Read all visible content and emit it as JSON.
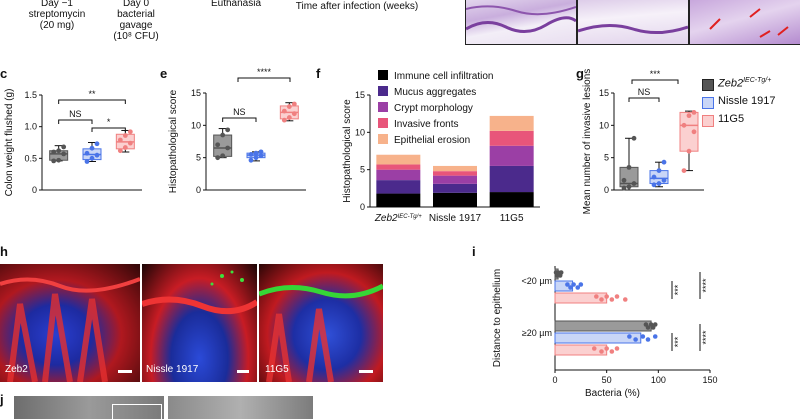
{
  "timeline": {
    "day_minus1": "Day −1",
    "strep": "streptomycin",
    "strep_dose": "(20 mg)",
    "day0": "Day 0",
    "bacterial": "bacterial",
    "gavage": "gavage",
    "cfu": "(10⁸ CFU)",
    "euthanasia": "Euthanasia",
    "time_after": "Time after infection (weeks)"
  },
  "panel_labels": {
    "c": "c",
    "e": "e",
    "f": "f",
    "g": "g",
    "h": "h",
    "i": "i",
    "j": "j"
  },
  "legend": {
    "items": [
      {
        "label": "Zeb2",
        "sup": "IEC-Tg/+",
        "color": "#555555"
      },
      {
        "label": "Nissle 1917",
        "sup": "",
        "color": "#5b7fe8"
      },
      {
        "label": "11G5",
        "sup": "",
        "color": "#f4a6a6"
      }
    ]
  },
  "colors": {
    "zeb2": "#555555",
    "nissle": "#4a74e8",
    "g11": "#f08080",
    "nissle_fill": "#c9d6f7",
    "g11_fill": "#fbd0d0",
    "zeb2_fill": "#9a9a9a"
  },
  "chart_data": [
    {
      "id": "c",
      "type": "box",
      "ylabel": "Colon weight flushed (g)",
      "ylim": [
        0,
        1.5
      ],
      "yticks": [
        "0",
        "0.5",
        "1.0",
        "1.5"
      ],
      "groups": [
        "Zeb2",
        "Nissle 1917",
        "11G5"
      ],
      "boxes": [
        {
          "min": 0.46,
          "q1": 0.47,
          "median": 0.57,
          "q3": 0.62,
          "max": 0.7,
          "points": [
            0.46,
            0.47,
            0.57,
            0.6,
            0.62,
            0.68
          ]
        },
        {
          "min": 0.45,
          "q1": 0.48,
          "median": 0.56,
          "q3": 0.65,
          "max": 0.75,
          "points": [
            0.45,
            0.5,
            0.55,
            0.58,
            0.66,
            0.73
          ]
        },
        {
          "min": 0.6,
          "q1": 0.65,
          "median": 0.76,
          "q3": 0.88,
          "max": 0.94,
          "points": [
            0.62,
            0.67,
            0.74,
            0.79,
            0.86,
            0.92
          ]
        }
      ],
      "annotations": [
        "**",
        "NS",
        "*"
      ]
    },
    {
      "id": "e",
      "type": "box",
      "ylabel": "Histopathological score",
      "ylim": [
        0,
        15
      ],
      "yticks": [
        "0",
        "5",
        "10",
        "15"
      ],
      "groups": [
        "Zeb2",
        "Nissle 1917",
        "11G5"
      ],
      "boxes": [
        {
          "min": 5.0,
          "q1": 5.2,
          "median": 6.5,
          "q3": 8.5,
          "max": 9.5,
          "points": [
            5.0,
            5.3,
            6.5,
            7.0,
            8.5,
            9.3
          ]
        },
        {
          "min": 4.5,
          "q1": 5.0,
          "median": 5.4,
          "q3": 5.7,
          "max": 5.9,
          "points": [
            4.6,
            5.0,
            5.3,
            5.5,
            5.7,
            5.9
          ]
        },
        {
          "min": 10.7,
          "q1": 11.0,
          "median": 12.0,
          "q3": 13.0,
          "max": 13.5,
          "points": [
            10.8,
            11.2,
            11.8,
            12.2,
            12.9,
            13.3
          ]
        }
      ],
      "annotations": [
        "****",
        "NS"
      ]
    },
    {
      "id": "f",
      "type": "stacked-bar",
      "ylabel": "Histopathological score",
      "ylim": [
        0,
        15
      ],
      "yticks": [
        "0",
        "5",
        "10",
        "15"
      ],
      "categories": [
        "Zeb2",
        "Nissle 1917",
        "11G5"
      ],
      "category_sup": [
        "IEC-Tg/+",
        "",
        ""
      ],
      "series": [
        {
          "name": "Immune cell infiltration",
          "color": "#000000",
          "values": [
            1.8,
            1.9,
            2.0
          ]
        },
        {
          "name": "Mucus aggregates",
          "color": "#4b2a8c",
          "values": [
            1.8,
            1.2,
            3.5
          ]
        },
        {
          "name": "Crypt morphology",
          "color": "#9b3fa5",
          "values": [
            1.4,
            1.1,
            2.7
          ]
        },
        {
          "name": "Invasive fronts",
          "color": "#e8557a",
          "values": [
            0.7,
            0.6,
            2.0
          ]
        },
        {
          "name": "Epithelial erosion",
          "color": "#f7b28b",
          "values": [
            1.3,
            0.7,
            2.0
          ]
        }
      ]
    },
    {
      "id": "g",
      "type": "box",
      "ylabel": "Mean number of invasive lesions",
      "ylim": [
        0,
        15
      ],
      "yticks": [
        "0",
        "5",
        "10",
        "15"
      ],
      "groups": [
        "Zeb2",
        "Nissle 1917",
        "11G5"
      ],
      "boxes": [
        {
          "min": 0,
          "q1": 0.5,
          "median": 1.0,
          "q3": 3.5,
          "max": 8.0,
          "points": [
            0.3,
            0.5,
            1.0,
            1.5,
            3.5,
            8.0
          ]
        },
        {
          "min": 0.5,
          "q1": 1.0,
          "median": 1.8,
          "q3": 3.0,
          "max": 4.3,
          "points": [
            0.8,
            1.0,
            1.5,
            2.0,
            3.0,
            4.3
          ]
        },
        {
          "min": 3.0,
          "q1": 6.0,
          "median": 10.0,
          "q3": 12.0,
          "max": 12.2,
          "points": [
            3.0,
            6.0,
            9.0,
            10.0,
            11.5,
            12.0
          ]
        }
      ],
      "annotations": [
        "***",
        "NS"
      ]
    },
    {
      "id": "i",
      "type": "horizontal-bar",
      "xlabel": "Bacteria (%)",
      "xlim": [
        0,
        150
      ],
      "xticks": [
        "0",
        "50",
        "100",
        "150"
      ],
      "ylabel": "Distance to epithelium",
      "row_groups": [
        "<20 µm",
        "≥20 µm"
      ],
      "rows": [
        {
          "group": 0,
          "value": 3,
          "color": "#555555",
          "fill": "#9a9a9a",
          "points": [
            1,
            2,
            3,
            5,
            6
          ]
        },
        {
          "group": 0,
          "value": 17,
          "color": "#4a74e8",
          "fill": "#c9d6f7",
          "points": [
            12,
            15,
            18,
            22,
            25
          ]
        },
        {
          "group": 0,
          "value": 50,
          "color": "#f08080",
          "fill": "#fbd0d0",
          "points": [
            40,
            45,
            50,
            55,
            60,
            68
          ]
        },
        {
          "group": 1,
          "value": 93,
          "color": "#555555",
          "fill": "#9a9a9a",
          "points": [
            88,
            90,
            93,
            95,
            97
          ]
        },
        {
          "group": 1,
          "value": 83,
          "color": "#4a74e8",
          "fill": "#c9d6f7",
          "points": [
            72,
            78,
            85,
            90,
            97
          ]
        },
        {
          "group": 1,
          "value": 50,
          "color": "#f08080",
          "fill": "#fbd0d0",
          "points": [
            38,
            45,
            50,
            55,
            60
          ]
        }
      ],
      "annotations": [
        "***",
        "****",
        "***",
        "****"
      ]
    }
  ],
  "micrographs": {
    "h": [
      {
        "label": "Zeb2"
      },
      {
        "label": "Nissle 1917"
      },
      {
        "label": "11G5"
      }
    ]
  }
}
